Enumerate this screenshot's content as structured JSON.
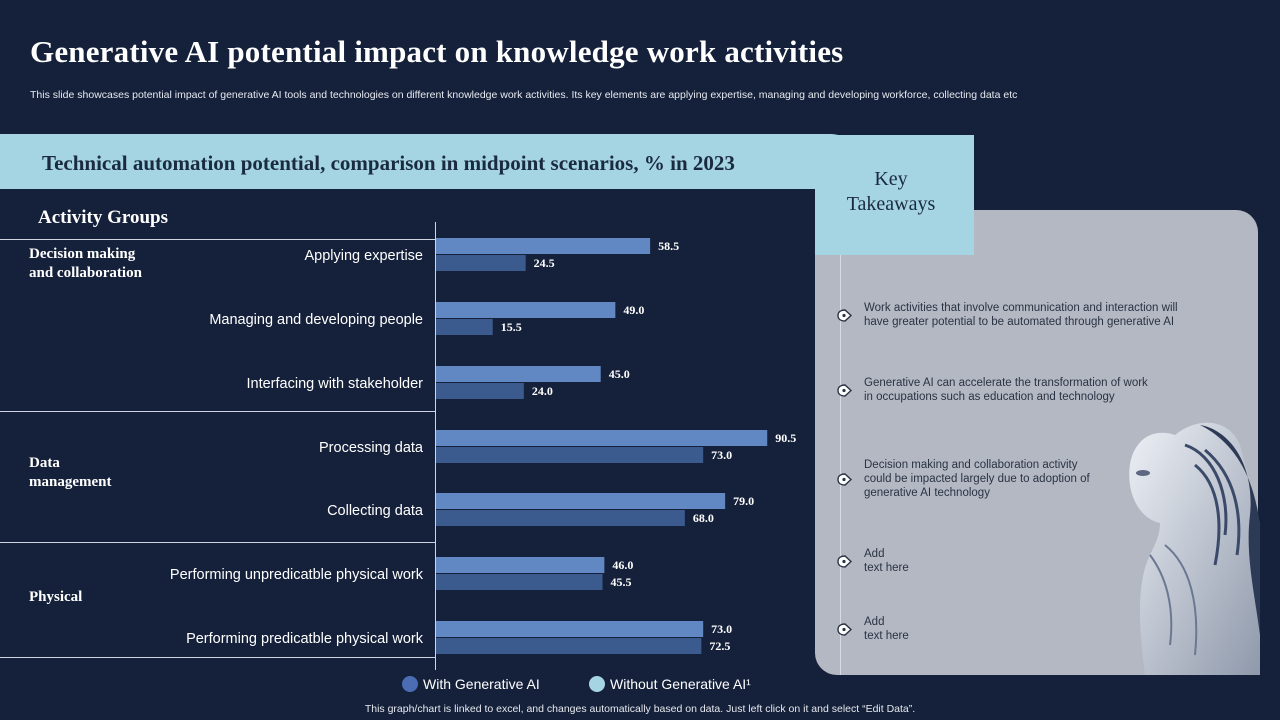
{
  "title": "Generative AI potential impact on knowledge work activities",
  "subtitle": "This slide showcases potential impact of generative AI tools and technologies on different knowledge work activities. Its key elements are applying expertise, managing and developing workforce, collecting data etc",
  "banner": "Technical automation potential, comparison in midpoint scenarios, % in 2023",
  "activity_groups_label": "Activity  Groups",
  "groups": [
    {
      "label_line1": "Decision making",
      "label_line2": "and collaboration"
    },
    {
      "label_line1": "Data",
      "label_line2": "management"
    },
    {
      "label_line1": "Physical",
      "label_line2": ""
    }
  ],
  "chart_data": {
    "type": "bar",
    "orientation": "horizontal",
    "categories": [
      "Applying expertise",
      "Managing and developing people",
      "Interfacing with stakeholder",
      "Processing data",
      "Collecting data",
      "Performing unpredicatble physical work",
      "Performing predicatble physical work"
    ],
    "series": [
      {
        "name": "With Generative AI",
        "values": [
          58.5,
          49.0,
          45.0,
          90.5,
          79.0,
          46.0,
          73.0
        ],
        "color": "#6288c4"
      },
      {
        "name": "Without Generative AI¹",
        "values": [
          24.5,
          15.5,
          24.0,
          73.0,
          68.0,
          45.5,
          72.5
        ],
        "color": "#3b5a8e"
      }
    ],
    "data_labels": [
      [
        "58.5",
        "49.0",
        "45.0",
        "90.5",
        "79.0",
        "46.0",
        "73.0"
      ],
      [
        "24.5",
        "15.5",
        "24.0",
        "73.0",
        "68.0",
        "45.5",
        "72.5"
      ]
    ],
    "xlim": [
      0,
      100
    ],
    "legend_placement": "bottom",
    "grid": false
  },
  "legend": [
    {
      "label": "With Generative AI",
      "color": "#4a6db4"
    },
    {
      "label": "Without Generative AI¹",
      "color": "#a5d4e2"
    }
  ],
  "key_takeaways": {
    "line1": "Key",
    "line2": "Takeaways",
    "items": [
      {
        "line1": "Work activities that involve communication and interaction will",
        "line2": "have greater potential to be automated through generative AI",
        "line3": ""
      },
      {
        "line1": "Generative AI  can accelerate the transformation of work",
        "line2": "in occupations such as education and technology",
        "line3": ""
      },
      {
        "line1": "Decision making and collaboration activity",
        "line2": "could be impacted largely due to adoption of",
        "line3": "generative AI  technology"
      },
      {
        "line1": "Add",
        "line2": "text here",
        "line3": ""
      },
      {
        "line1": "Add",
        "line2": "text here",
        "line3": ""
      }
    ]
  },
  "footnote": "This graph/chart is linked to excel,  and changes automatically based on data. Just left click on it and select “Edit Data”.",
  "colors": {
    "background": "#15213a",
    "accent": "#a5d4e2",
    "panel": "#b4b8c2"
  }
}
